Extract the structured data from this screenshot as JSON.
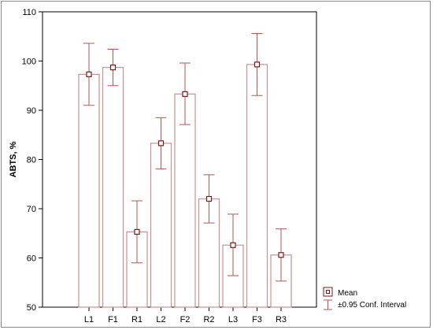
{
  "chart_data": {
    "type": "bar",
    "categories": [
      "L1",
      "F1",
      "R1",
      "L2",
      "F2",
      "R2",
      "L3",
      "F3",
      "R3"
    ],
    "series": [
      {
        "name": "Mean",
        "values": [
          97.3,
          98.7,
          65.3,
          83.3,
          93.3,
          72.0,
          62.6,
          99.3,
          60.6
        ],
        "ci_upper": [
          103.6,
          102.4,
          71.6,
          88.5,
          99.6,
          76.9,
          68.9,
          105.6,
          65.9
        ],
        "ci_lower": [
          91.0,
          95.0,
          59.0,
          78.1,
          87.1,
          67.1,
          56.4,
          93.0,
          55.3
        ]
      }
    ],
    "title": "",
    "xlabel": "",
    "ylabel": "ABTS, %",
    "ylim": [
      50,
      110
    ],
    "yticks": [
      50,
      60,
      70,
      80,
      90,
      100,
      110
    ],
    "grid": false,
    "legend": {
      "placement": "bottom-right",
      "entries": [
        "Mean",
        "±0.95 Conf. Interval"
      ]
    },
    "colors": {
      "bar": "#c9918f",
      "point": "#7a1a1a",
      "error": "#b55555",
      "axis": "#000000"
    }
  }
}
